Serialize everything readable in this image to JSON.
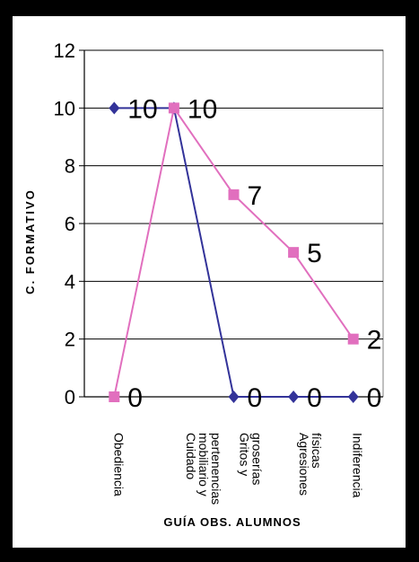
{
  "chart_data": {
    "type": "line",
    "categories": [
      "Obediencia",
      "Cuidado mobiliario y pertenencias",
      "Gritos y groserías",
      "Agresiones físicas",
      "Indiferencia"
    ],
    "series": [
      {
        "values": [
          10,
          10,
          0,
          0,
          0
        ],
        "color": "#333399",
        "marker": "diamond",
        "labels": [
          "10",
          "",
          "0",
          "0",
          "0"
        ]
      },
      {
        "values": [
          0,
          10,
          7,
          5,
          2
        ],
        "color": "#E16FBE",
        "marker": "square",
        "labels": [
          "0",
          "10",
          "7",
          "5",
          "2"
        ]
      }
    ],
    "ylim": [
      0,
      12
    ],
    "yticks": [
      0,
      2,
      4,
      6,
      8,
      10,
      12
    ],
    "ylabel": "C. FORMATIVO",
    "xlabel": "GUÍA OBS. ALUMNOS",
    "grid": true
  }
}
